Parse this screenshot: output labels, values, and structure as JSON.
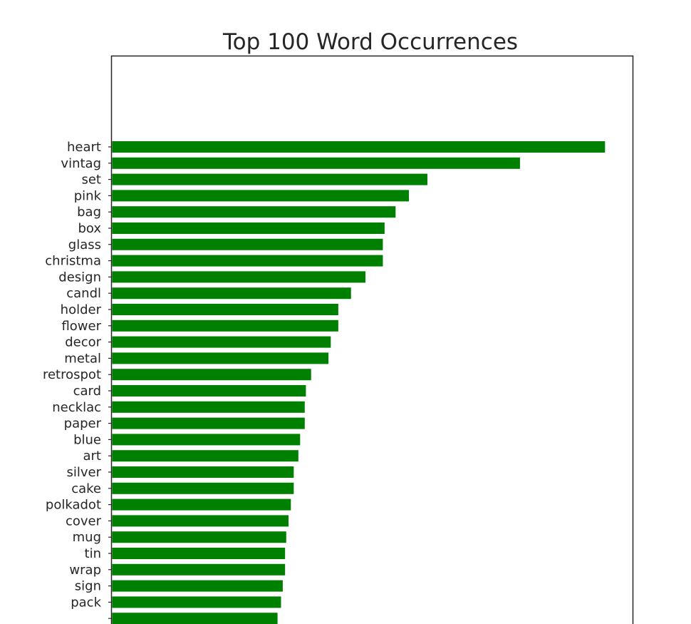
{
  "chart_data": {
    "type": "bar",
    "orientation": "horizontal",
    "title": "Top 100 Word Occurrences",
    "xlabel": "",
    "ylabel": "",
    "categories": [
      "heart",
      "vintag",
      "set",
      "pink",
      "bag",
      "box",
      "glass",
      "christma",
      "design",
      "candl",
      "holder",
      "flower",
      "decor",
      "metal",
      "retrospot",
      "card",
      "necklac",
      "paper",
      "blue",
      "art",
      "silver",
      "cake",
      "polkadot",
      "cover",
      "mug",
      "tin",
      "wrap",
      "sign",
      "pack",
      ""
    ],
    "values": [
      853,
      706,
      546,
      514,
      491,
      472,
      469,
      469,
      439,
      414,
      392,
      392,
      379,
      375,
      345,
      336,
      334,
      334,
      326,
      323,
      315,
      315,
      310,
      306,
      302,
      300,
      300,
      296,
      293,
      287
    ],
    "xlim": [
      0,
      900
    ],
    "grid": false,
    "bar_color": "#008000"
  }
}
